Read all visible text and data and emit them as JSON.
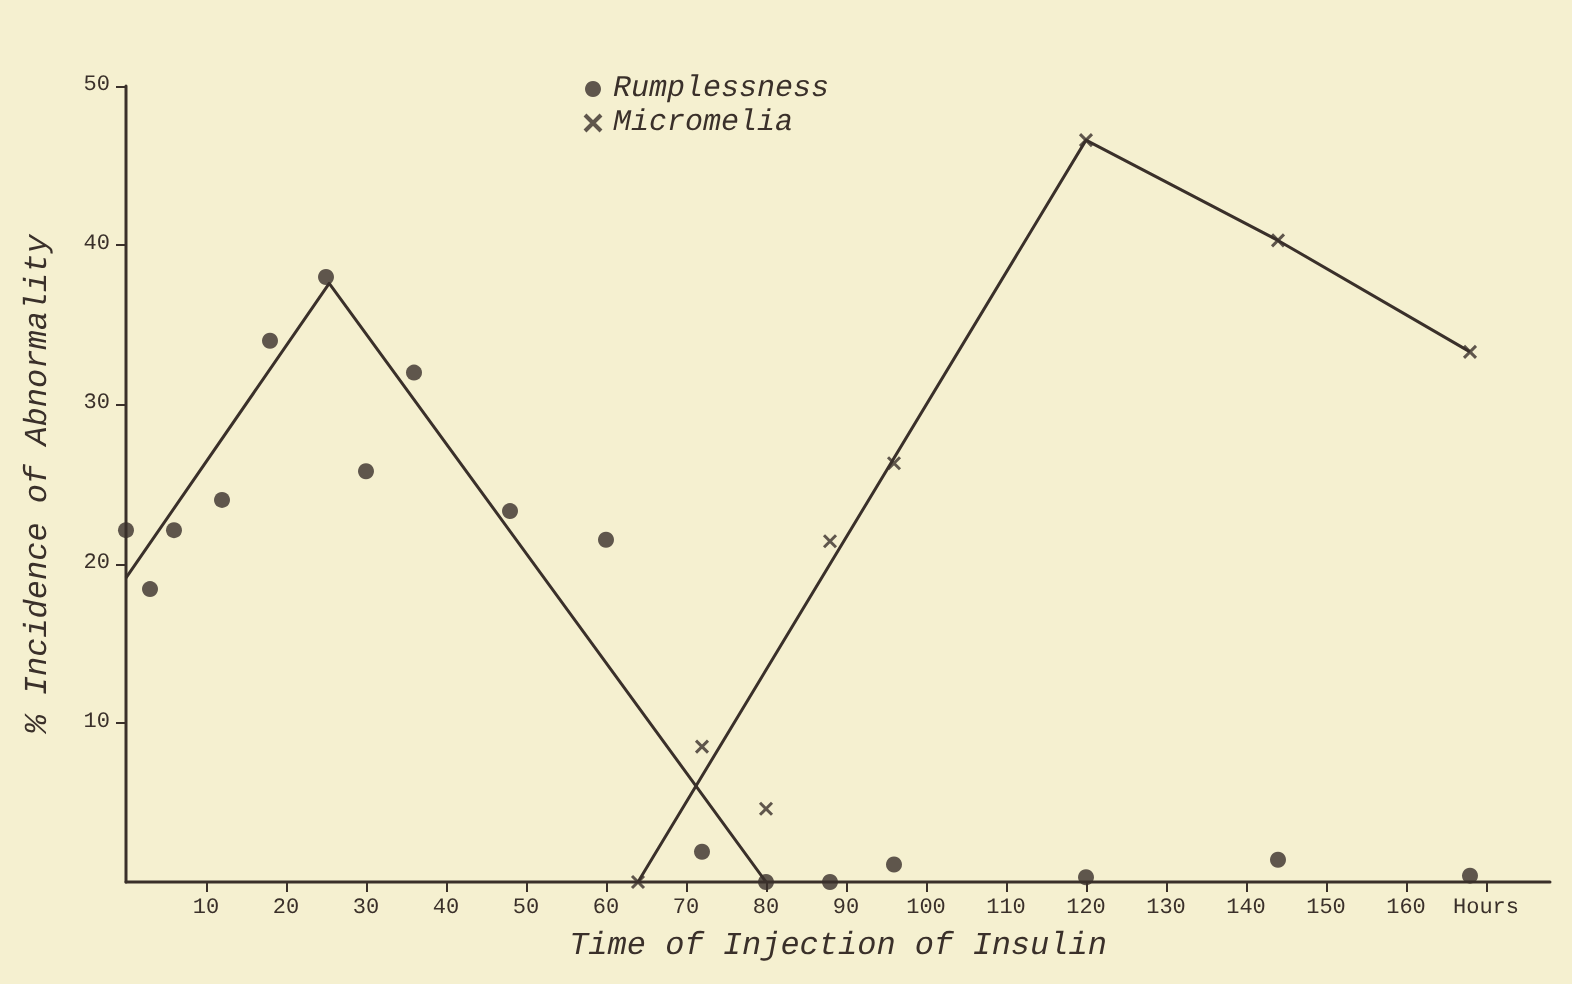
{
  "chart_data": {
    "type": "scatter",
    "xlabel": "Time of Injection of Insulin",
    "ylabel": "% Incidence of Abnormality",
    "xlim": [
      0,
      178
    ],
    "xticks": [
      10,
      20,
      30,
      40,
      50,
      60,
      70,
      80,
      90,
      100,
      110,
      120,
      130,
      140,
      150,
      160,
      {
        "value": 170,
        "label": "Hours"
      }
    ],
    "ylim": [
      0,
      50
    ],
    "yticks": [
      10,
      20,
      30,
      40,
      50
    ],
    "grid": false,
    "legend": "top",
    "series": [
      {
        "name": "Rumplessness",
        "marker": "circle",
        "color": "#3a302a",
        "x": [
          0,
          3,
          6,
          12,
          18,
          25,
          30,
          36,
          48,
          60,
          72,
          80,
          88,
          96,
          120,
          144,
          168
        ],
        "values": [
          22.1,
          18.4,
          22.1,
          24,
          34,
          38,
          25.8,
          32,
          23.3,
          21.5,
          1.9,
          0,
          0,
          1.1,
          0.3,
          1.4,
          0.4
        ]
      },
      {
        "name": "Micromelia",
        "marker": "cross",
        "color": "#3a302a",
        "x": [
          64,
          72,
          80,
          88,
          96,
          120,
          144,
          168
        ],
        "values": [
          0,
          8.5,
          4.6,
          21.4,
          26.3,
          46.6,
          40.3,
          33.3
        ]
      },
      {
        "type": "line",
        "marker": "none",
        "line_style": "solid",
        "color": "#3a302a",
        "x": [
          0,
          25.4,
          80
        ],
        "values": [
          19.1,
          37.6,
          0
        ]
      },
      {
        "type": "line",
        "marker": "none",
        "line_style": "solid",
        "color": "#3a302a",
        "x": [
          64,
          120,
          144,
          168
        ],
        "values": [
          0,
          46.6,
          40.3,
          33.3
        ]
      }
    ]
  }
}
